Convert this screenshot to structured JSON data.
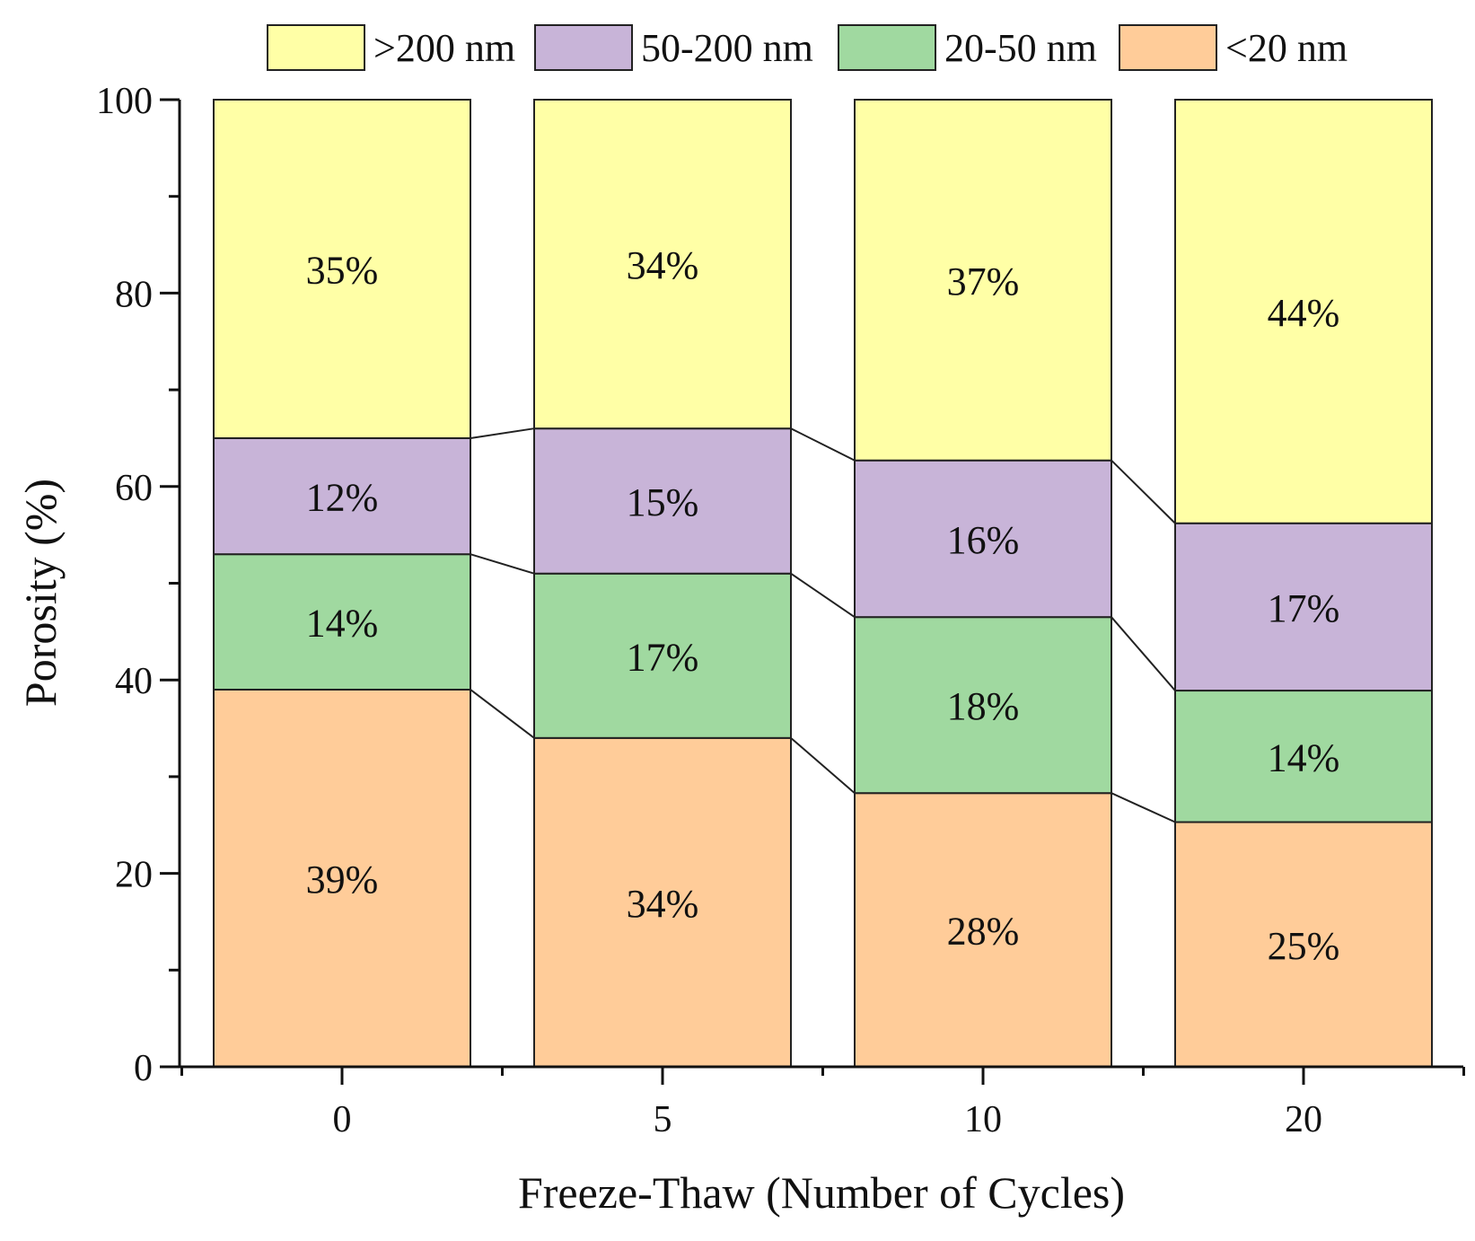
{
  "chart_data": {
    "type": "bar",
    "stacked": true,
    "title": "",
    "xlabel": "Freeze-Thaw (Number of Cycles)",
    "ylabel": "Porosity (%)",
    "ylim": [
      0,
      100
    ],
    "yticks": [
      "0",
      "20",
      "40",
      "60",
      "80",
      "100"
    ],
    "categories": [
      "0",
      "5",
      "10",
      "20"
    ],
    "legend_position": "top",
    "series": [
      {
        "name": "<20 nm",
        "color": "#FFCC99",
        "values": [
          39,
          34,
          28.3,
          25.3
        ],
        "labels": [
          "39%",
          "34%",
          "28%",
          "25%"
        ]
      },
      {
        "name": "20-50 nm",
        "color": "#A0D9A0",
        "values": [
          14,
          17,
          18.2,
          13.6
        ],
        "labels": [
          "14%",
          "17%",
          "18%",
          "14%"
        ]
      },
      {
        "name": "50-200 nm",
        "color": "#C8B4D8",
        "values": [
          12,
          15,
          16.2,
          17.3
        ],
        "labels": [
          "12%",
          "15%",
          "16%",
          "17%"
        ]
      },
      {
        "name": ">200 nm",
        "color": "#FFFFA6",
        "values": [
          35,
          34,
          37.3,
          43.8
        ],
        "labels": [
          "35%",
          "34%",
          "37%",
          "44%"
        ]
      }
    ],
    "legend_order": [
      ">200 nm",
      "50-200 nm",
      "20-50 nm",
      "<20 nm"
    ]
  }
}
